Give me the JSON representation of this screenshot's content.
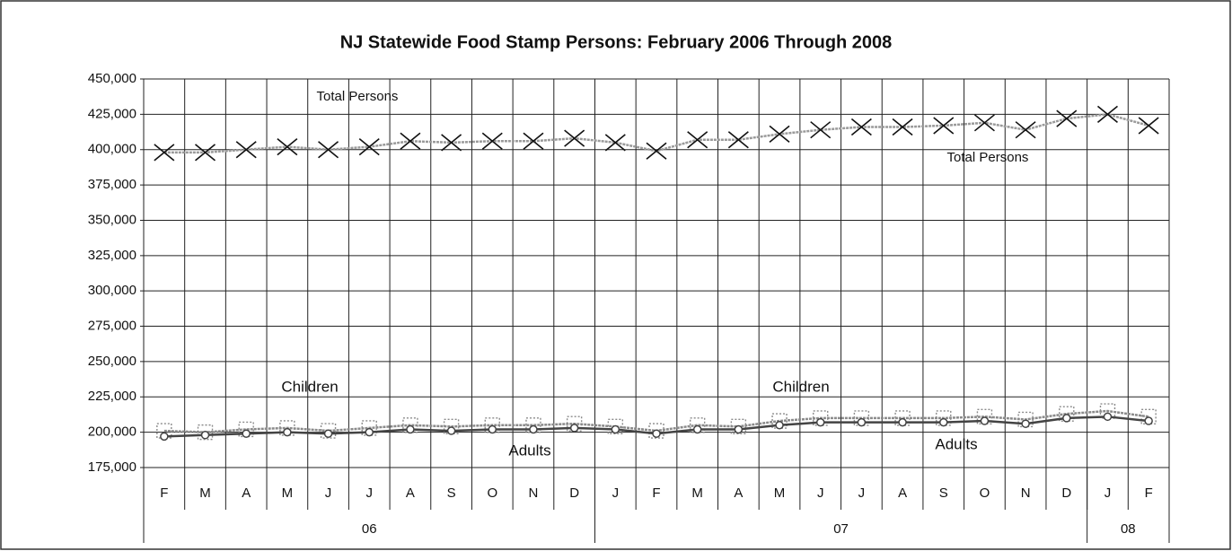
{
  "chart_data": {
    "type": "line",
    "title": "NJ Statewide Food Stamp Persons: February 2006 Through 2008",
    "categories": [
      "F",
      "M",
      "A",
      "M",
      "J",
      "J",
      "A",
      "S",
      "O",
      "N",
      "D",
      "J",
      "F",
      "M",
      "A",
      "M",
      "J",
      "J",
      "A",
      "S",
      "O",
      "N",
      "D",
      "J",
      "F"
    ],
    "category_groups": [
      {
        "label": "06",
        "count": 11
      },
      {
        "label": "07",
        "count": 12
      },
      {
        "label": "08",
        "count": 2
      }
    ],
    "ylim": [
      175000,
      450000
    ],
    "yticks": [
      {
        "value": 175000,
        "label": "175,000"
      },
      {
        "value": 200000,
        "label": "200,000"
      },
      {
        "value": 225000,
        "label": "225,000"
      },
      {
        "value": 250000,
        "label": "250,000"
      },
      {
        "value": 275000,
        "label": "275,000"
      },
      {
        "value": 300000,
        "label": "300,000"
      },
      {
        "value": 325000,
        "label": "325,000"
      },
      {
        "value": 350000,
        "label": "350,000"
      },
      {
        "value": 375000,
        "label": "375,000"
      },
      {
        "value": 400000,
        "label": "400,000"
      },
      {
        "value": 425000,
        "label": "425,000"
      },
      {
        "value": 450000,
        "label": "450,000"
      }
    ],
    "grid": true,
    "series": [
      {
        "name": "Total Persons",
        "color": "#9a9a9a",
        "marker": "x",
        "values": [
          398000,
          398000,
          400000,
          402000,
          400000,
          402000,
          406000,
          405000,
          406000,
          406000,
          408000,
          405000,
          399000,
          407000,
          407000,
          411000,
          414000,
          416000,
          416000,
          417000,
          419000,
          414000,
          422000,
          425000,
          417000
        ]
      },
      {
        "name": "Children",
        "color": "#8a8a8a",
        "marker": "square",
        "values": [
          201000,
          200000,
          202000,
          203000,
          201000,
          203000,
          205000,
          204000,
          205000,
          205000,
          206000,
          204000,
          201000,
          205000,
          204000,
          208000,
          210000,
          210000,
          210000,
          210000,
          211000,
          209000,
          213000,
          215000,
          211000
        ]
      },
      {
        "name": "Adults",
        "color": "#444444",
        "marker": "circle",
        "values": [
          197000,
          198000,
          199000,
          200000,
          199000,
          200000,
          202000,
          201000,
          202000,
          202000,
          203000,
          202000,
          199000,
          202000,
          202000,
          205000,
          207000,
          207000,
          207000,
          207000,
          208000,
          206000,
          210000,
          211000,
          208000
        ]
      }
    ]
  }
}
